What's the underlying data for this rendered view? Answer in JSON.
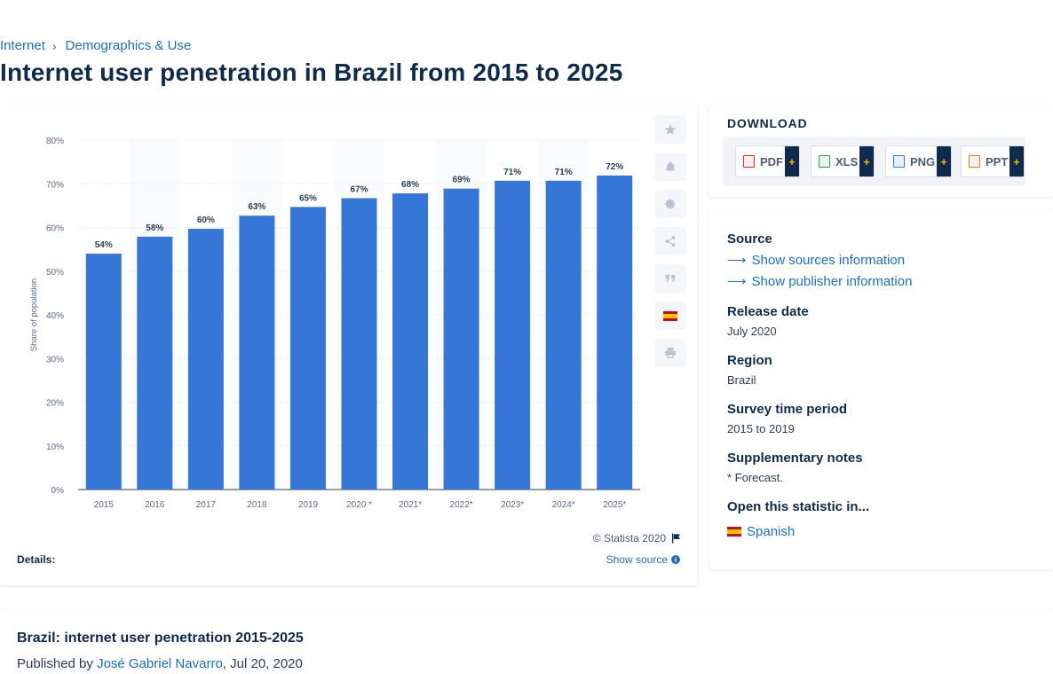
{
  "breadcrumb": {
    "items": [
      "Internet",
      "Demographics & Use"
    ]
  },
  "page_title": "Internet user penetration in Brazil from 2015 to 2025",
  "chart_data": {
    "type": "bar",
    "title": "",
    "ylabel": "Share of population",
    "xlabel": "",
    "categories": [
      "2015",
      "2016",
      "2017",
      "2018",
      "2019",
      "2020 *",
      "2021*",
      "2022*",
      "2023*",
      "2024*",
      "2025*"
    ],
    "values": [
      54,
      58,
      60,
      63,
      65,
      67,
      68,
      69,
      71,
      71,
      72
    ],
    "plotted_values": [
      54.0,
      57.9,
      59.7,
      62.7,
      64.7,
      66.7,
      67.8,
      68.9,
      70.7,
      70.7,
      71.9
    ],
    "data_labels": [
      "54%",
      "58%",
      "60%",
      "63%",
      "65%",
      "67%",
      "68%",
      "69%",
      "71%",
      "71%",
      "72%"
    ],
    "ylim": [
      0,
      80
    ],
    "yticks": [
      0,
      10,
      20,
      30,
      40,
      50,
      60,
      70,
      80
    ],
    "ytick_labels": [
      "0%",
      "10%",
      "20%",
      "30%",
      "40%",
      "50%",
      "60%",
      "70%",
      "80%"
    ],
    "grid": true,
    "bar_color": "#3576d6"
  },
  "chart_footer": {
    "copyright": "© Statista 2020",
    "details_label": "Details:",
    "show_source": "Show source"
  },
  "tools": [
    "star-icon",
    "bell-icon",
    "gear-icon",
    "share-icon",
    "quote-icon",
    "spanish-flag-icon",
    "print-icon"
  ],
  "download": {
    "title": "DOWNLOAD",
    "buttons": [
      {
        "label": "PDF",
        "icon": "pdf-file-icon",
        "color": "#d9302c"
      },
      {
        "label": "XLS",
        "icon": "xls-file-icon",
        "color": "#2e9e4a"
      },
      {
        "label": "PNG",
        "icon": "png-file-icon",
        "color": "#2a7ad2"
      },
      {
        "label": "PPT",
        "icon": "ppt-file-icon",
        "color": "#e8762b"
      }
    ],
    "plus": "+"
  },
  "meta": {
    "source_label": "Source",
    "show_sources": "Show sources information",
    "show_publisher": "Show publisher information",
    "release_label": "Release date",
    "release_value": "July 2020",
    "region_label": "Region",
    "region_value": "Brazil",
    "survey_label": "Survey time period",
    "survey_value": "2015 to 2019",
    "notes_label": "Supplementary notes",
    "notes_value": "* Forecast.",
    "open_label": "Open this statistic in...",
    "open_language": "Spanish"
  },
  "publication": {
    "title": "Brazil: internet user penetration 2015-2025",
    "published_by": "Published by",
    "author": "José Gabriel Navarro",
    "date": ", Jul 20, 2020"
  }
}
